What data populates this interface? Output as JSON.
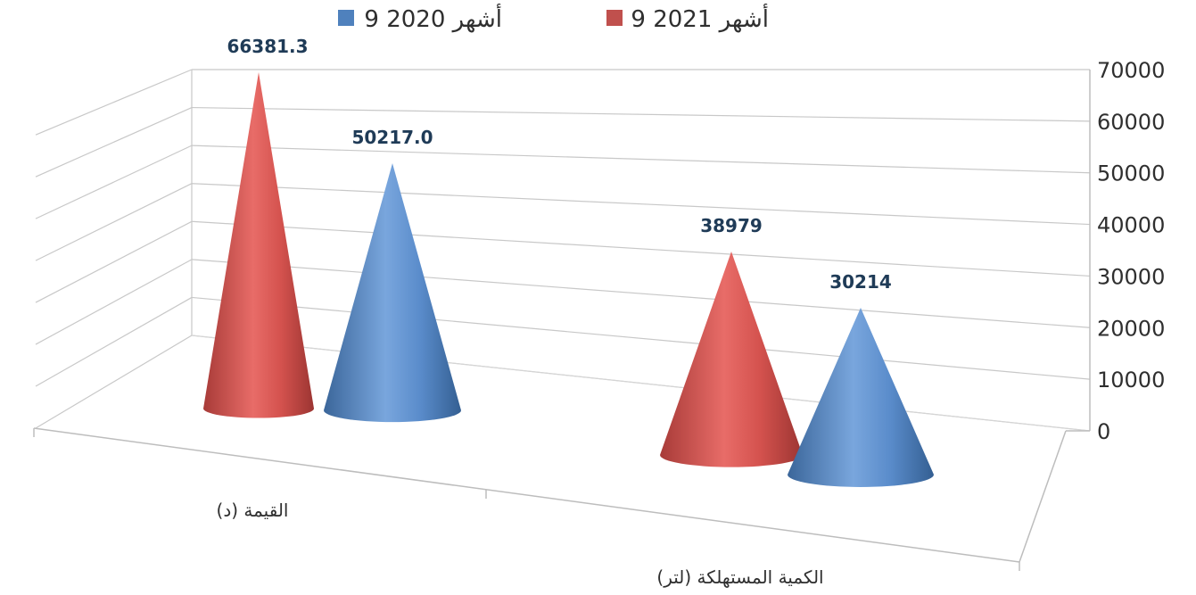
{
  "chart_data": {
    "type": "bar",
    "shape": "3d-cone",
    "categories": [
      "القيمة (د)",
      "الكمية المستهلكة (لتر)"
    ],
    "series": [
      {
        "name": "9 أشهر 2021",
        "color": "#c0504d",
        "values": [
          66381.3,
          38979
        ],
        "labels": [
          "66381.3",
          "38979"
        ]
      },
      {
        "name": "9 أشهر 2020",
        "color": "#4f81bd",
        "values": [
          50217.0,
          30214
        ],
        "labels": [
          "50217.0",
          "30214"
        ]
      }
    ],
    "yticks": [
      "0",
      "10000",
      "20000",
      "30000",
      "40000",
      "50000",
      "60000",
      "70000"
    ],
    "ylim": [
      0,
      70000
    ],
    "title": "",
    "xlabel": "",
    "ylabel": "",
    "grid": true,
    "legend": "top"
  }
}
